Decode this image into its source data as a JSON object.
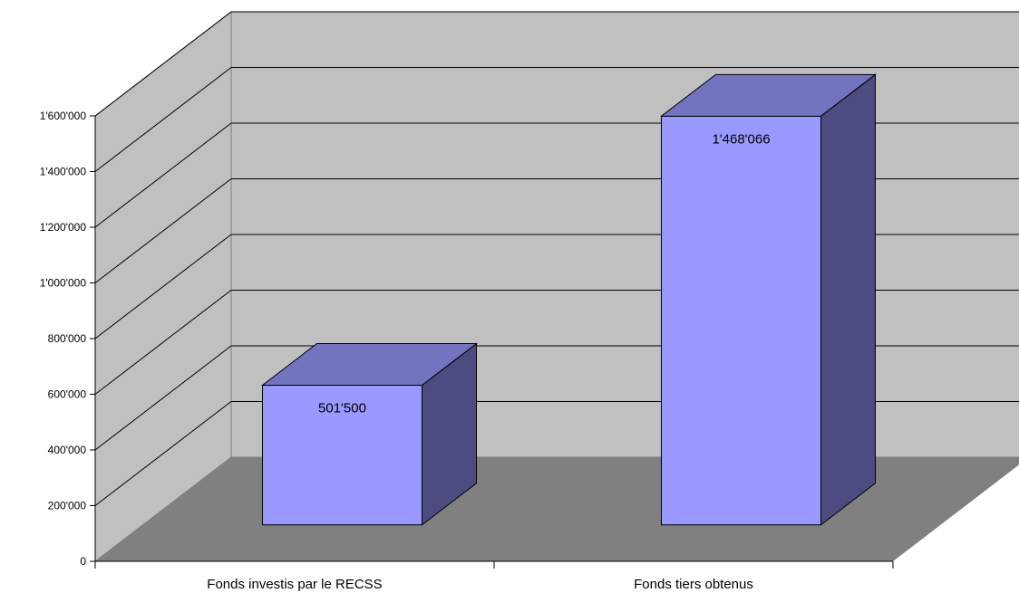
{
  "chart_data": {
    "type": "bar",
    "categories": [
      "Fonds investis par le RECSS",
      "Fonds tiers obtenus"
    ],
    "values": [
      501500,
      1468066
    ],
    "data_labels": [
      "501'500",
      "1'468'066"
    ],
    "ylim": [
      0,
      1600000
    ],
    "yticks": [
      0,
      200000,
      400000,
      600000,
      800000,
      1000000,
      1200000,
      1400000,
      1600000
    ],
    "ytick_labels": [
      "0",
      "200'000",
      "400'000",
      "600'000",
      "800'000",
      "1'000'000",
      "1'200'000",
      "1'400'000",
      "1'600'000"
    ],
    "grid": true,
    "legend": "none",
    "three_d": true,
    "colors": {
      "bar_front": "#9999ff",
      "bar_top": "#7373c0",
      "bar_side": "#4c4c80",
      "wall": "#c0c0c0",
      "floor": "#808080"
    }
  }
}
